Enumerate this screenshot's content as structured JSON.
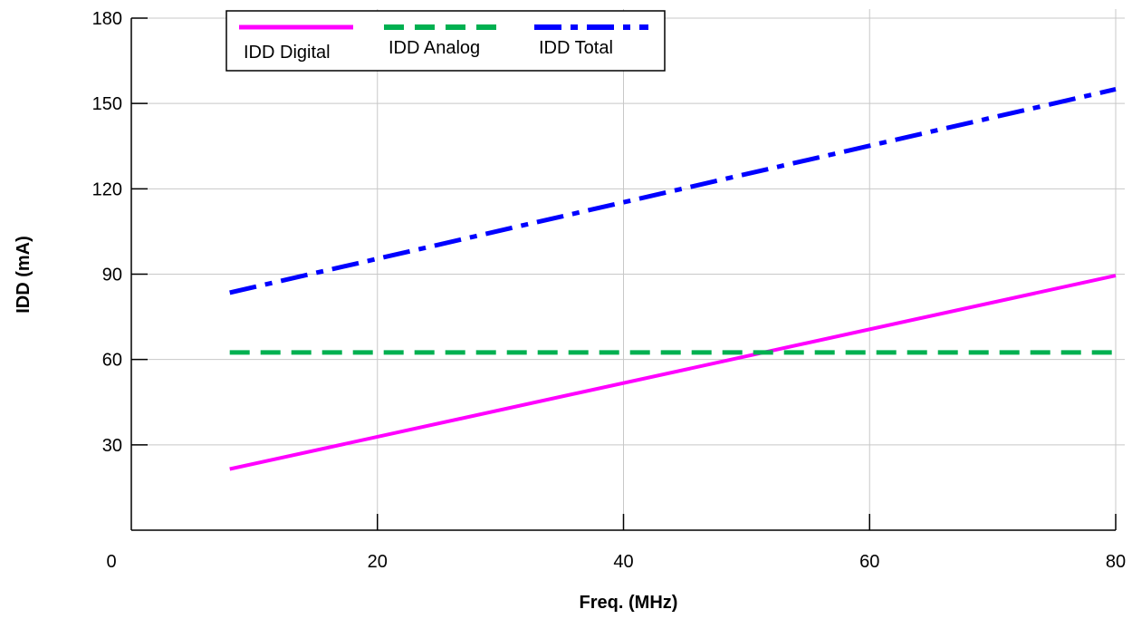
{
  "chart_data": {
    "type": "line",
    "title": "",
    "xlabel": "Freq. (MHz)",
    "ylabel": "IDD (mA)",
    "xlim": [
      0,
      80
    ],
    "ylim": [
      0,
      180
    ],
    "x_ticks": [
      0,
      20,
      40,
      60,
      80
    ],
    "y_ticks": [
      30,
      60,
      90,
      120,
      150,
      180
    ],
    "grid": true,
    "legend_position": "top-left",
    "series": [
      {
        "name": "IDD Digital",
        "color": "#ff00ff",
        "style": "solid",
        "x": [
          8,
          80
        ],
        "y": [
          21.5,
          89.5
        ]
      },
      {
        "name": "IDD Analog",
        "color": "#00b050",
        "style": "dashed",
        "x": [
          8,
          80
        ],
        "y": [
          62.5,
          62.5
        ]
      },
      {
        "name": "IDD Total",
        "color": "#0000ff",
        "style": "dash-dot",
        "x": [
          8,
          80
        ],
        "y": [
          83.5,
          155
        ]
      }
    ]
  }
}
